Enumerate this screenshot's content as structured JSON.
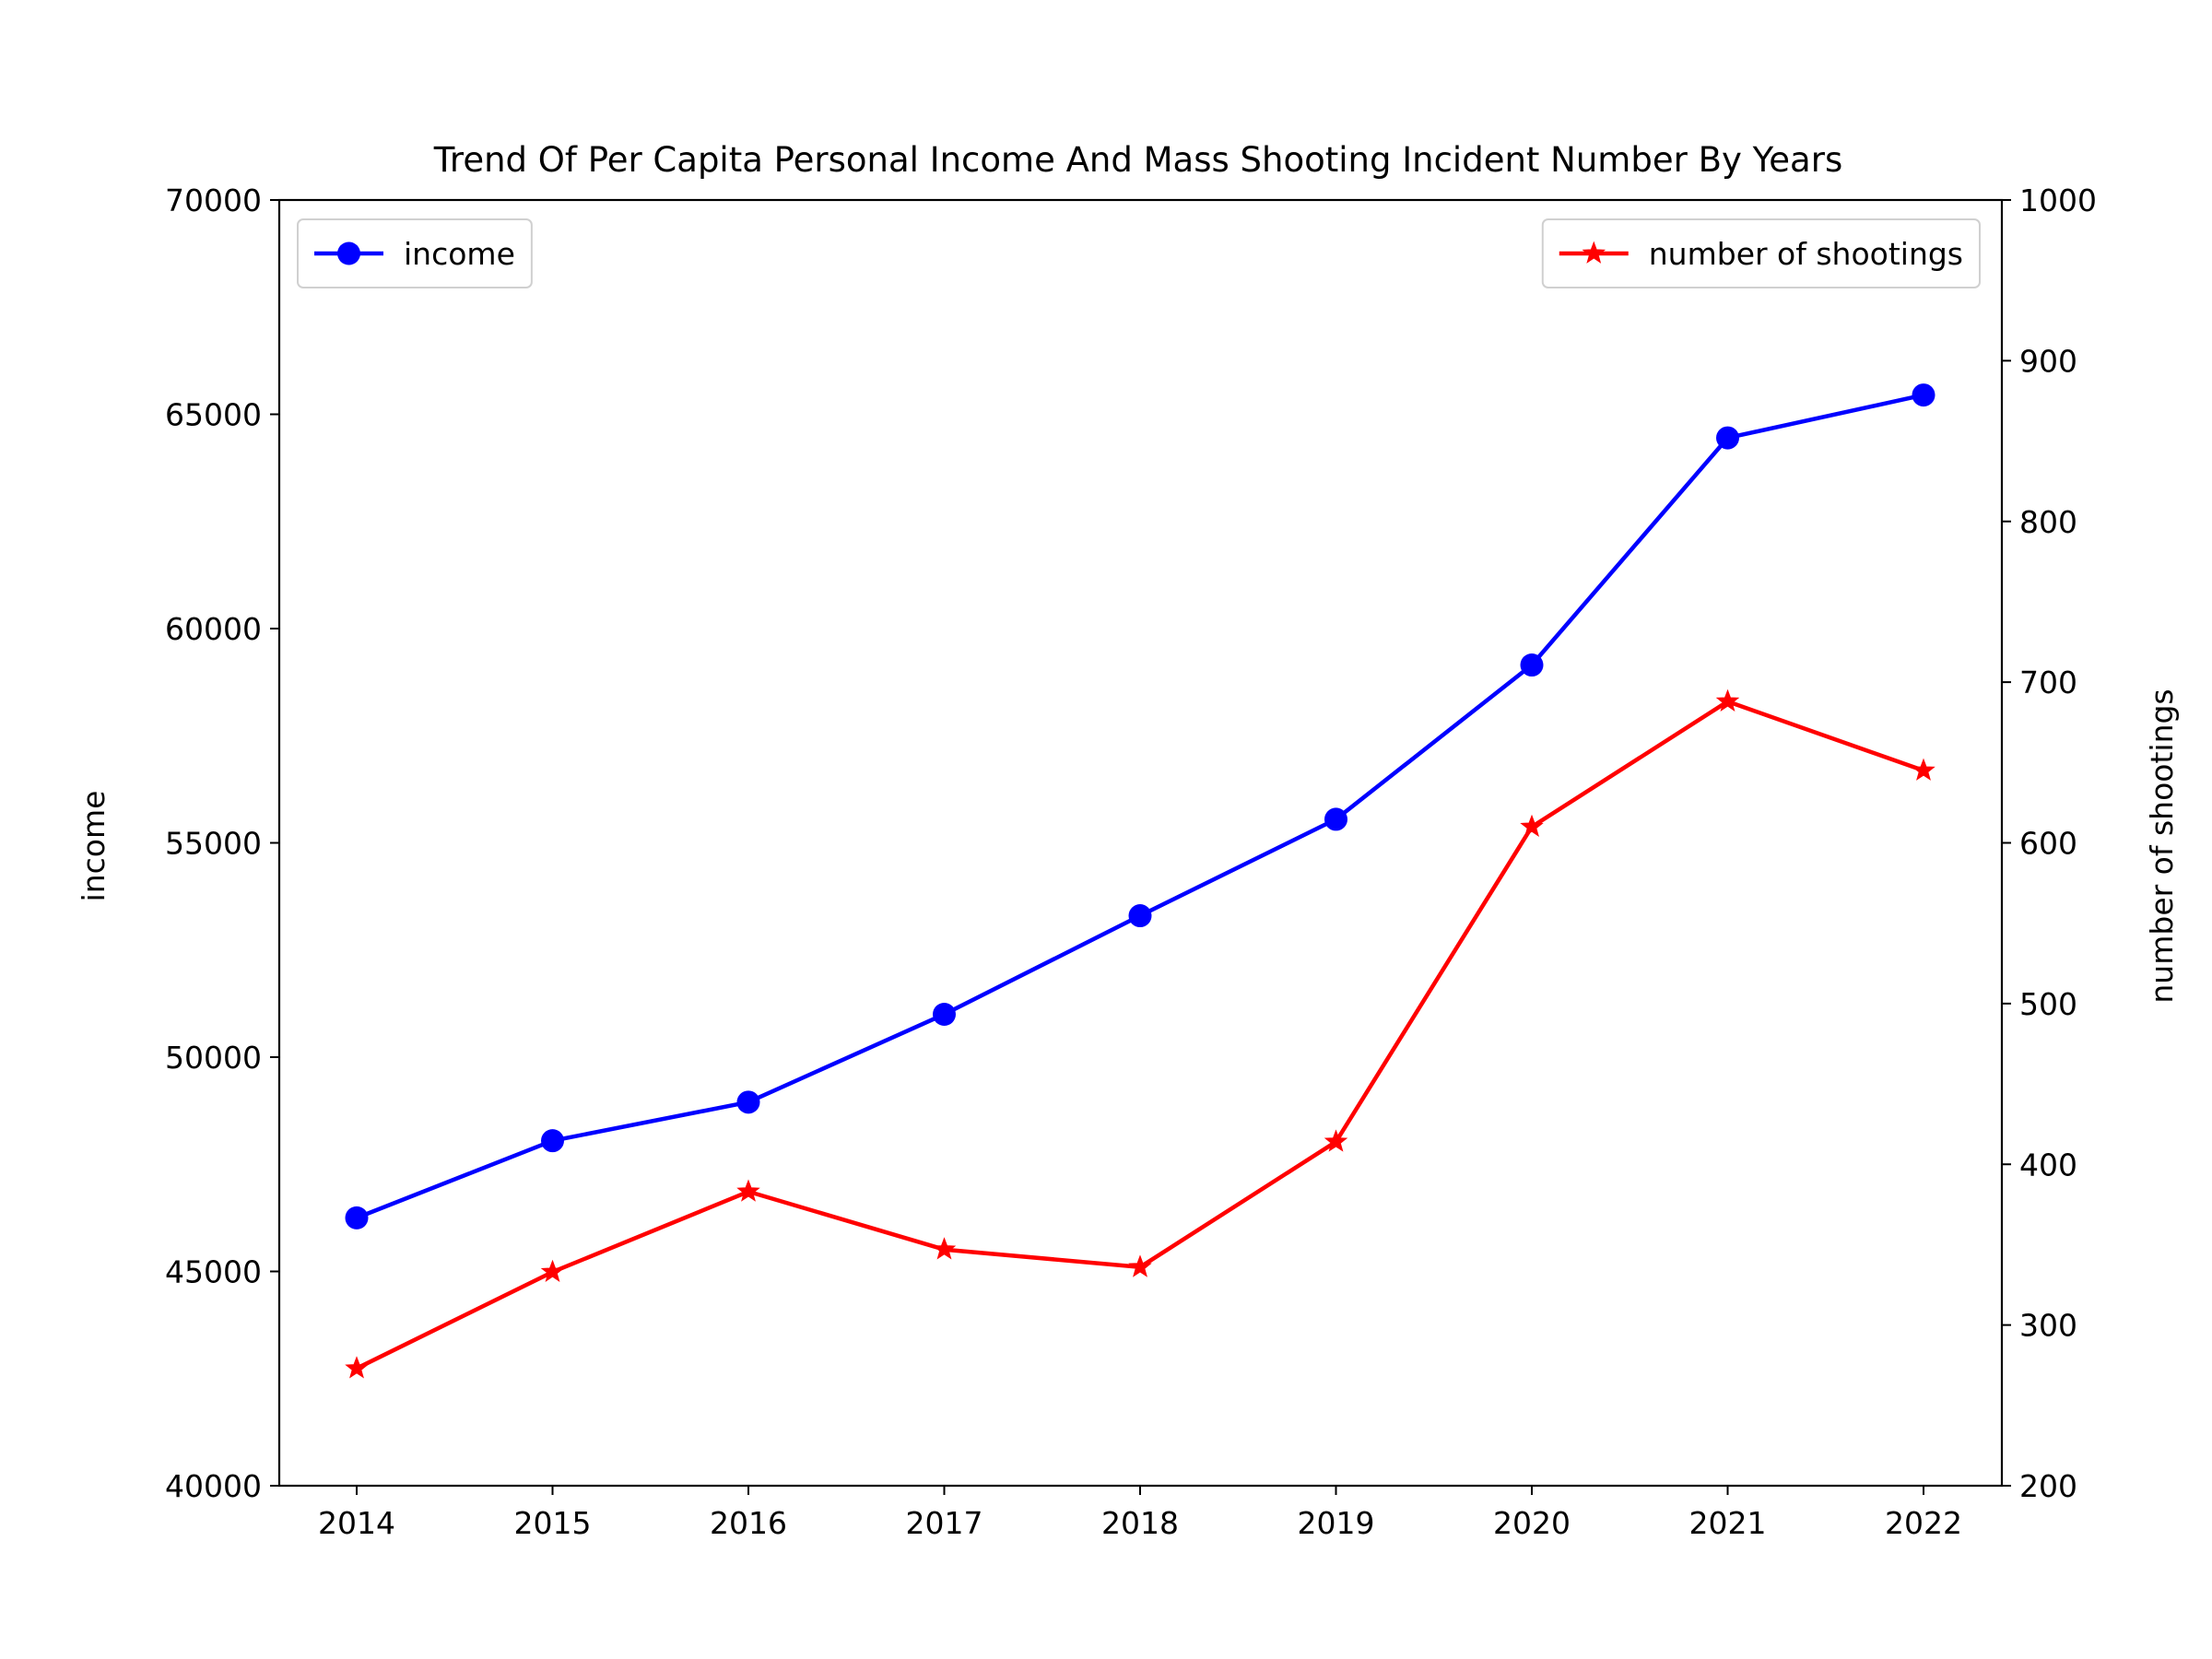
{
  "chart_data": {
    "type": "line",
    "title": "Trend Of Per Capita Personal Income And Mass Shooting Incident Number By Years",
    "xlabel": "",
    "categories": [
      "2014",
      "2015",
      "2016",
      "2017",
      "2018",
      "2019",
      "2020",
      "2021",
      "2022"
    ],
    "y_left": {
      "label": "income",
      "ylim": [
        40000,
        70000
      ],
      "ticks": [
        "40000",
        "45000",
        "50000",
        "55000",
        "60000",
        "65000",
        "70000"
      ]
    },
    "y_right": {
      "label": "number of shootings",
      "ylim": [
        200,
        1000
      ],
      "ticks": [
        "200",
        "300",
        "400",
        "500",
        "600",
        "700",
        "800",
        "900",
        "1000"
      ]
    },
    "series": [
      {
        "name": "income",
        "axis": "left",
        "color": "#0000ff",
        "marker": "circle",
        "values": [
          46250,
          48050,
          48950,
          51000,
          53300,
          55550,
          59150,
          64450,
          65450
        ]
      },
      {
        "name": "number of shootings",
        "axis": "right",
        "color": "#ff0000",
        "marker": "star",
        "values": [
          273,
          333,
          383,
          347,
          336,
          414,
          610,
          688,
          645
        ]
      }
    ],
    "legends": [
      {
        "series": "income",
        "position": "upper-left"
      },
      {
        "series": "number of shootings",
        "position": "upper-right"
      }
    ],
    "grid": false
  }
}
